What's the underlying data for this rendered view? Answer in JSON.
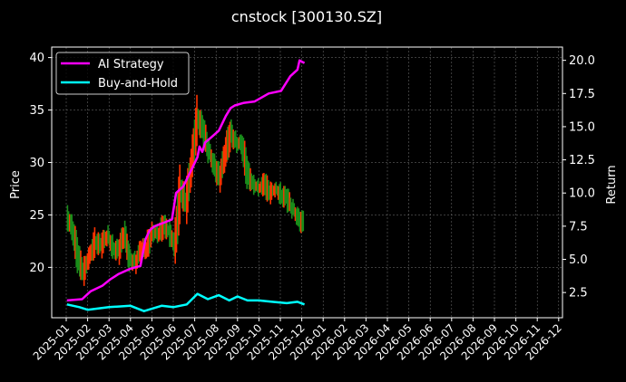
{
  "chart_data": {
    "type": "line",
    "title": "cnstock [300130.SZ]",
    "xlabel": "",
    "ylabel": "Price",
    "y2label": "Return",
    "grid": true,
    "legend_position": "top-left",
    "ylim": [
      15.2,
      41.0
    ],
    "y2lim": [
      0.6,
      21.0
    ],
    "y_ticks": [
      20,
      25,
      30,
      35,
      40
    ],
    "y2_ticks": [
      2.5,
      5.0,
      7.5,
      10.0,
      12.5,
      15.0,
      17.5,
      20.0
    ],
    "y2_tick_labels": [
      "2.5",
      "5.0",
      "7.5",
      "10.0",
      "12.5",
      "15.0",
      "17.5",
      "20.0"
    ],
    "x_ticks": [
      "2025-01",
      "2025-02",
      "2025-03",
      "2025-04",
      "2025-05",
      "2025-06",
      "2025-07",
      "2025-08",
      "2025-09",
      "2025-10",
      "2025-11",
      "2025-12",
      "2026-01",
      "2026-02",
      "2026-03",
      "2026-04",
      "2026-05",
      "2026-06",
      "2026-07",
      "2026-08",
      "2026-09",
      "2026-10",
      "2026-11",
      "2026-12"
    ],
    "price_series": {
      "name": "Price",
      "up_color": "#ff3300",
      "down_color": "#1a8c1a",
      "x": [
        "2025-01-02",
        "2025-01-10",
        "2025-01-18",
        "2025-01-26",
        "2025-02-03",
        "2025-02-11",
        "2025-02-19",
        "2025-02-27",
        "2025-03-07",
        "2025-03-15",
        "2025-03-23",
        "2025-03-31",
        "2025-04-08",
        "2025-04-16",
        "2025-04-24",
        "2025-05-02",
        "2025-05-10",
        "2025-05-18",
        "2025-05-26",
        "2025-06-03",
        "2025-06-11",
        "2025-06-19",
        "2025-06-27",
        "2025-07-05",
        "2025-07-13",
        "2025-07-21",
        "2025-07-29",
        "2025-08-06",
        "2025-08-14",
        "2025-08-22",
        "2025-08-30",
        "2025-09-07",
        "2025-09-15",
        "2025-09-23",
        "2025-10-01",
        "2025-10-09",
        "2025-10-17",
        "2025-10-25",
        "2025-11-02",
        "2025-11-10",
        "2025-11-18",
        "2025-11-26",
        "2025-12-04"
      ],
      "values": [
        25.0,
        23.5,
        21.0,
        19.5,
        21.0,
        22.5,
        22.0,
        23.0,
        22.0,
        21.5,
        23.0,
        21.0,
        20.5,
        21.5,
        22.0,
        23.5,
        23.0,
        24.0,
        23.5,
        22.0,
        27.5,
        26.0,
        30.0,
        34.5,
        33.0,
        31.0,
        30.0,
        28.5,
        30.5,
        33.0,
        32.0,
        31.5,
        29.0,
        28.0,
        27.5,
        28.0,
        27.0,
        27.5,
        27.0,
        26.5,
        25.5,
        25.0,
        24.0
      ]
    },
    "series": [
      {
        "name": "AI Strategy",
        "color": "#ff00ff",
        "x": [
          "2025-01-02",
          "2025-01-24",
          "2025-02-05",
          "2025-02-20",
          "2025-03-03",
          "2025-03-15",
          "2025-04-01",
          "2025-04-15",
          "2025-04-22",
          "2025-04-28",
          "2025-05-05",
          "2025-05-20",
          "2025-05-30",
          "2025-06-05",
          "2025-06-15",
          "2025-06-25",
          "2025-07-05",
          "2025-07-08",
          "2025-07-12",
          "2025-07-16",
          "2025-07-25",
          "2025-08-05",
          "2025-08-15",
          "2025-08-22",
          "2025-08-28",
          "2025-09-10",
          "2025-09-25",
          "2025-10-05",
          "2025-10-15",
          "2025-11-02",
          "2025-11-15",
          "2025-11-25",
          "2025-11-28",
          "2025-12-01",
          "2025-12-05"
        ],
        "values": [
          1.9,
          2.0,
          2.6,
          3.0,
          3.5,
          3.9,
          4.3,
          4.5,
          6.5,
          7.2,
          7.5,
          7.8,
          8.0,
          10.0,
          10.5,
          11.6,
          12.7,
          13.5,
          13.1,
          13.8,
          14.2,
          14.7,
          15.8,
          16.4,
          16.6,
          16.8,
          16.9,
          17.2,
          17.5,
          17.7,
          18.8,
          19.3,
          20.0,
          19.9,
          19.8
        ]
      },
      {
        "name": "Buy-and-Hold",
        "color": "#00ffff",
        "x": [
          "2025-01-02",
          "2025-01-20",
          "2025-02-01",
          "2025-03-01",
          "2025-04-01",
          "2025-04-20",
          "2025-05-15",
          "2025-06-01",
          "2025-06-20",
          "2025-07-05",
          "2025-07-20",
          "2025-08-05",
          "2025-08-20",
          "2025-09-01",
          "2025-09-15",
          "2025-10-01",
          "2025-10-20",
          "2025-11-10",
          "2025-11-25",
          "2025-12-05"
        ],
        "values": [
          1.6,
          1.4,
          1.2,
          1.4,
          1.5,
          1.1,
          1.5,
          1.4,
          1.6,
          2.4,
          2.0,
          2.3,
          1.9,
          2.2,
          1.9,
          1.9,
          1.8,
          1.7,
          1.8,
          1.6
        ]
      }
    ]
  }
}
